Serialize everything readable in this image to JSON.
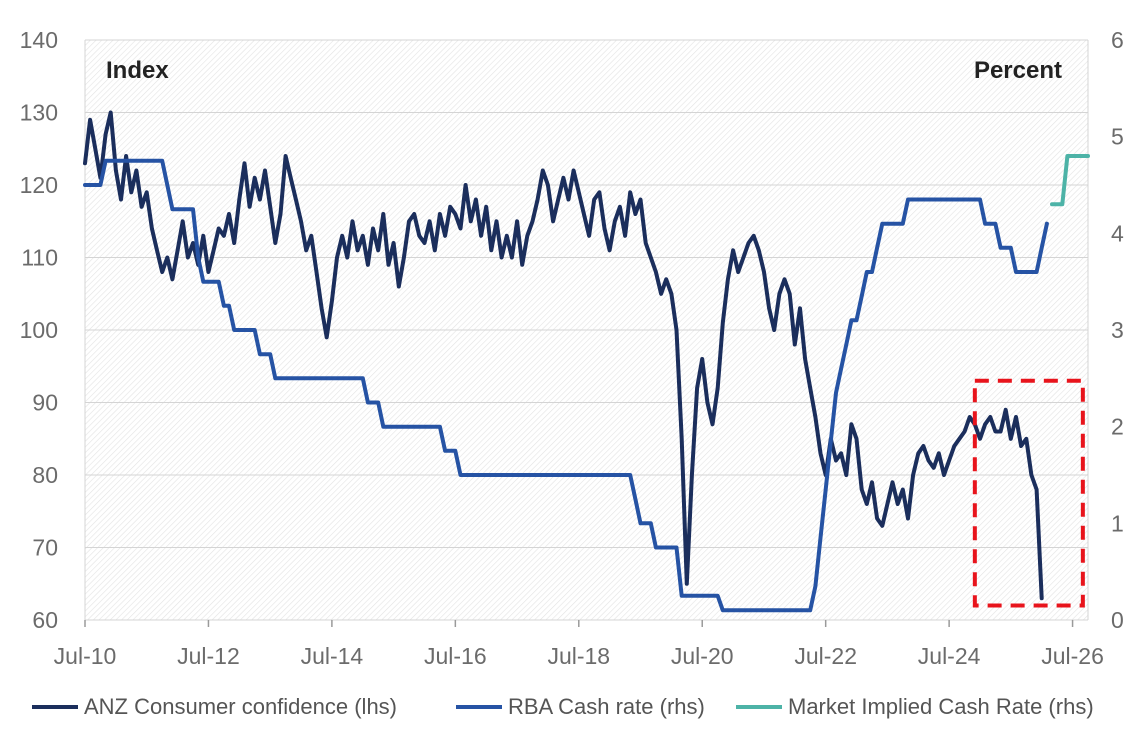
{
  "chart_data": {
    "type": "line",
    "x_ticks": [
      "Jul-10",
      "Jul-12",
      "Jul-14",
      "Jul-16",
      "Jul-18",
      "Jul-20",
      "Jul-22",
      "Jul-24",
      "Jul-26"
    ],
    "y_left": {
      "label": "Index",
      "range": [
        60,
        140
      ],
      "ticks": [
        "60",
        "70",
        "80",
        "90",
        "100",
        "110",
        "120",
        "130",
        "140"
      ]
    },
    "y_right": {
      "label": "Percent",
      "range": [
        0,
        6
      ],
      "ticks": [
        "0",
        "1",
        "2",
        "3",
        "4",
        "5",
        "6"
      ]
    },
    "x_range": [
      "2010-07",
      "2026-10"
    ],
    "grid": "horizontal",
    "background": "diagonal-hatch",
    "legend_position": "bottom",
    "highlight_box": {
      "x": [
        "2024-12",
        "2026-09"
      ],
      "y_left": [
        62,
        93
      ],
      "color": "#e8141c",
      "style": "dashed"
    },
    "series": [
      {
        "name": "ANZ Consumer confidence (lhs)",
        "axis": "left",
        "color": "#1b2e5c",
        "points": [
          [
            "2010-07",
            123
          ],
          [
            "2010-08",
            129
          ],
          [
            "2010-09",
            125
          ],
          [
            "2010-10",
            121
          ],
          [
            "2010-11",
            127
          ],
          [
            "2010-12",
            130
          ],
          [
            "2011-01",
            122
          ],
          [
            "2011-02",
            118
          ],
          [
            "2011-03",
            124
          ],
          [
            "2011-04",
            119
          ],
          [
            "2011-05",
            122
          ],
          [
            "2011-06",
            117
          ],
          [
            "2011-07",
            119
          ],
          [
            "2011-08",
            114
          ],
          [
            "2011-09",
            111
          ],
          [
            "2011-10",
            108
          ],
          [
            "2011-11",
            110
          ],
          [
            "2011-12",
            107
          ],
          [
            "2012-01",
            111
          ],
          [
            "2012-02",
            115
          ],
          [
            "2012-03",
            110
          ],
          [
            "2012-04",
            112
          ],
          [
            "2012-05",
            109
          ],
          [
            "2012-06",
            113
          ],
          [
            "2012-07",
            108
          ],
          [
            "2012-08",
            111
          ],
          [
            "2012-09",
            114
          ],
          [
            "2012-10",
            113
          ],
          [
            "2012-11",
            116
          ],
          [
            "2012-12",
            112
          ],
          [
            "2013-01",
            118
          ],
          [
            "2013-02",
            123
          ],
          [
            "2013-03",
            117
          ],
          [
            "2013-04",
            121
          ],
          [
            "2013-05",
            118
          ],
          [
            "2013-06",
            122
          ],
          [
            "2013-07",
            117
          ],
          [
            "2013-08",
            112
          ],
          [
            "2013-09",
            116
          ],
          [
            "2013-10",
            124
          ],
          [
            "2013-11",
            121
          ],
          [
            "2013-12",
            118
          ],
          [
            "2014-01",
            115
          ],
          [
            "2014-02",
            111
          ],
          [
            "2014-03",
            113
          ],
          [
            "2014-04",
            108
          ],
          [
            "2014-05",
            103
          ],
          [
            "2014-06",
            99
          ],
          [
            "2014-07",
            104
          ],
          [
            "2014-08",
            110
          ],
          [
            "2014-09",
            113
          ],
          [
            "2014-10",
            110
          ],
          [
            "2014-11",
            115
          ],
          [
            "2014-12",
            111
          ],
          [
            "2015-01",
            113
          ],
          [
            "2015-02",
            109
          ],
          [
            "2015-03",
            114
          ],
          [
            "2015-04",
            111
          ],
          [
            "2015-05",
            116
          ],
          [
            "2015-06",
            109
          ],
          [
            "2015-07",
            112
          ],
          [
            "2015-08",
            106
          ],
          [
            "2015-09",
            110
          ],
          [
            "2015-10",
            115
          ],
          [
            "2015-11",
            116
          ],
          [
            "2015-12",
            113
          ],
          [
            "2016-01",
            112
          ],
          [
            "2016-02",
            115
          ],
          [
            "2016-03",
            111
          ],
          [
            "2016-04",
            116
          ],
          [
            "2016-05",
            113
          ],
          [
            "2016-06",
            117
          ],
          [
            "2016-07",
            116
          ],
          [
            "2016-08",
            114
          ],
          [
            "2016-09",
            120
          ],
          [
            "2016-10",
            115
          ],
          [
            "2016-11",
            118
          ],
          [
            "2016-12",
            113
          ],
          [
            "2017-01",
            117
          ],
          [
            "2017-02",
            111
          ],
          [
            "2017-03",
            115
          ],
          [
            "2017-04",
            110
          ],
          [
            "2017-05",
            113
          ],
          [
            "2017-06",
            110
          ],
          [
            "2017-07",
            115
          ],
          [
            "2017-08",
            109
          ],
          [
            "2017-09",
            113
          ],
          [
            "2017-10",
            115
          ],
          [
            "2017-11",
            118
          ],
          [
            "2017-12",
            122
          ],
          [
            "2018-01",
            120
          ],
          [
            "2018-02",
            115
          ],
          [
            "2018-03",
            118
          ],
          [
            "2018-04",
            121
          ],
          [
            "2018-05",
            118
          ],
          [
            "2018-06",
            122
          ],
          [
            "2018-07",
            119
          ],
          [
            "2018-08",
            116
          ],
          [
            "2018-09",
            113
          ],
          [
            "2018-10",
            118
          ],
          [
            "2018-11",
            119
          ],
          [
            "2018-12",
            114
          ],
          [
            "2019-01",
            111
          ],
          [
            "2019-02",
            115
          ],
          [
            "2019-03",
            117
          ],
          [
            "2019-04",
            113
          ],
          [
            "2019-05",
            119
          ],
          [
            "2019-06",
            116
          ],
          [
            "2019-07",
            118
          ],
          [
            "2019-08",
            112
          ],
          [
            "2019-09",
            110
          ],
          [
            "2019-10",
            108
          ],
          [
            "2019-11",
            105
          ],
          [
            "2019-12",
            107
          ],
          [
            "2020-01",
            105
          ],
          [
            "2020-02",
            100
          ],
          [
            "2020-03",
            85
          ],
          [
            "2020-04",
            65
          ],
          [
            "2020-05",
            80
          ],
          [
            "2020-06",
            92
          ],
          [
            "2020-07",
            96
          ],
          [
            "2020-08",
            90
          ],
          [
            "2020-09",
            87
          ],
          [
            "2020-10",
            92
          ],
          [
            "2020-11",
            101
          ],
          [
            "2020-12",
            107
          ],
          [
            "2021-01",
            111
          ],
          [
            "2021-02",
            108
          ],
          [
            "2021-03",
            110
          ],
          [
            "2021-04",
            112
          ],
          [
            "2021-05",
            113
          ],
          [
            "2021-06",
            111
          ],
          [
            "2021-07",
            108
          ],
          [
            "2021-08",
            103
          ],
          [
            "2021-09",
            100
          ],
          [
            "2021-10",
            105
          ],
          [
            "2021-11",
            107
          ],
          [
            "2021-12",
            105
          ],
          [
            "2022-01",
            98
          ],
          [
            "2022-02",
            103
          ],
          [
            "2022-03",
            96
          ],
          [
            "2022-04",
            92
          ],
          [
            "2022-05",
            88
          ],
          [
            "2022-06",
            83
          ],
          [
            "2022-07",
            80
          ],
          [
            "2022-08",
            85
          ],
          [
            "2022-09",
            82
          ],
          [
            "2022-10",
            83
          ],
          [
            "2022-11",
            80
          ],
          [
            "2022-12",
            87
          ],
          [
            "2023-01",
            85
          ],
          [
            "2023-02",
            78
          ],
          [
            "2023-03",
            76
          ],
          [
            "2023-04",
            79
          ],
          [
            "2023-05",
            74
          ],
          [
            "2023-06",
            73
          ],
          [
            "2023-07",
            76
          ],
          [
            "2023-08",
            79
          ],
          [
            "2023-09",
            76
          ],
          [
            "2023-10",
            78
          ],
          [
            "2023-11",
            74
          ],
          [
            "2023-12",
            80
          ],
          [
            "2024-01",
            83
          ],
          [
            "2024-02",
            84
          ],
          [
            "2024-03",
            82
          ],
          [
            "2024-04",
            81
          ],
          [
            "2024-05",
            83
          ],
          [
            "2024-06",
            80
          ],
          [
            "2024-07",
            82
          ],
          [
            "2024-08",
            84
          ],
          [
            "2024-09",
            85
          ],
          [
            "2024-10",
            86
          ],
          [
            "2024-11",
            88
          ],
          [
            "2024-12",
            87
          ],
          [
            "2025-01",
            85
          ],
          [
            "2025-02",
            87
          ],
          [
            "2025-03",
            88
          ],
          [
            "2025-04",
            86
          ],
          [
            "2025-05",
            86
          ],
          [
            "2025-06",
            89
          ],
          [
            "2025-07",
            85
          ],
          [
            "2025-08",
            88
          ],
          [
            "2025-09",
            84
          ],
          [
            "2025-10",
            85
          ],
          [
            "2025-11",
            80
          ],
          [
            "2025-12",
            78
          ],
          [
            "2026-01",
            63
          ]
        ]
      },
      {
        "name": "RBA Cash rate (rhs)",
        "axis": "right",
        "color": "#2653a4",
        "points": [
          [
            "2010-07",
            4.5
          ],
          [
            "2010-10",
            4.5
          ],
          [
            "2010-11",
            4.75
          ],
          [
            "2011-10",
            4.75
          ],
          [
            "2011-11",
            4.5
          ],
          [
            "2011-12",
            4.25
          ],
          [
            "2012-04",
            4.25
          ],
          [
            "2012-05",
            3.75
          ],
          [
            "2012-06",
            3.5
          ],
          [
            "2012-09",
            3.5
          ],
          [
            "2012-10",
            3.25
          ],
          [
            "2012-11",
            3.25
          ],
          [
            "2012-12",
            3.0
          ],
          [
            "2013-04",
            3.0
          ],
          [
            "2013-05",
            2.75
          ],
          [
            "2013-07",
            2.75
          ],
          [
            "2013-08",
            2.5
          ],
          [
            "2015-01",
            2.5
          ],
          [
            "2015-02",
            2.25
          ],
          [
            "2015-04",
            2.25
          ],
          [
            "2015-05",
            2.0
          ],
          [
            "2016-04",
            2.0
          ],
          [
            "2016-05",
            1.75
          ],
          [
            "2016-07",
            1.75
          ],
          [
            "2016-08",
            1.5
          ],
          [
            "2019-05",
            1.5
          ],
          [
            "2019-06",
            1.25
          ],
          [
            "2019-07",
            1.0
          ],
          [
            "2019-09",
            1.0
          ],
          [
            "2019-10",
            0.75
          ],
          [
            "2020-02",
            0.75
          ],
          [
            "2020-03",
            0.25
          ],
          [
            "2020-10",
            0.25
          ],
          [
            "2020-11",
            0.1
          ],
          [
            "2022-04",
            0.1
          ],
          [
            "2022-05",
            0.35
          ],
          [
            "2022-06",
            0.85
          ],
          [
            "2022-07",
            1.35
          ],
          [
            "2022-08",
            1.85
          ],
          [
            "2022-09",
            2.35
          ],
          [
            "2022-10",
            2.6
          ],
          [
            "2022-11",
            2.85
          ],
          [
            "2022-12",
            3.1
          ],
          [
            "2023-01",
            3.1
          ],
          [
            "2023-02",
            3.35
          ],
          [
            "2023-03",
            3.6
          ],
          [
            "2023-04",
            3.6
          ],
          [
            "2023-05",
            3.85
          ],
          [
            "2023-06",
            4.1
          ],
          [
            "2023-10",
            4.1
          ],
          [
            "2023-11",
            4.35
          ],
          [
            "2025-01",
            4.35
          ],
          [
            "2025-02",
            4.1
          ],
          [
            "2025-04",
            4.1
          ],
          [
            "2025-05",
            3.85
          ],
          [
            "2025-07",
            3.85
          ],
          [
            "2025-08",
            3.6
          ],
          [
            "2025-12",
            3.6
          ],
          [
            "2026-01",
            3.85
          ],
          [
            "2026-02",
            4.1
          ]
        ]
      },
      {
        "name": "Market Implied Cash Rate (rhs)",
        "axis": "right",
        "color": "#4db3a7",
        "points": [
          [
            "2026-03",
            4.3
          ],
          [
            "2026-05",
            4.3
          ],
          [
            "2026-06",
            4.8
          ],
          [
            "2026-10",
            4.8
          ]
        ]
      }
    ]
  }
}
